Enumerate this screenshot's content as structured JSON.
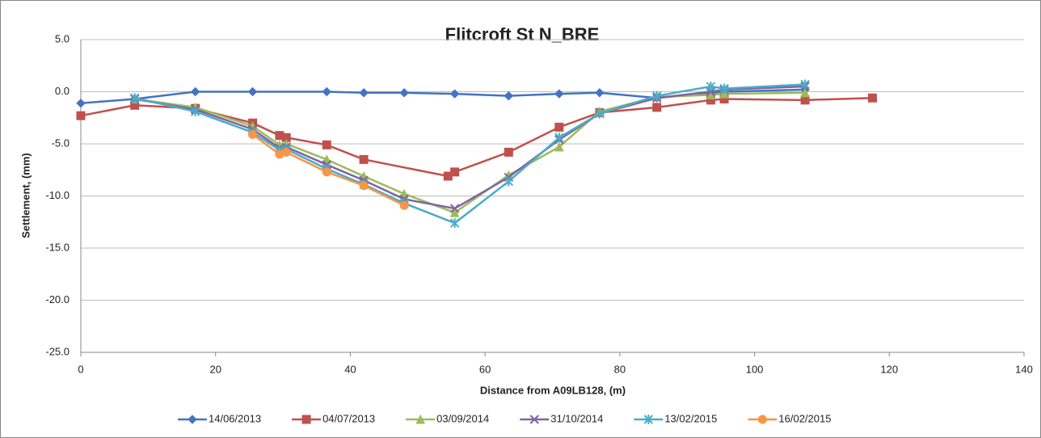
{
  "chart_data": {
    "type": "line",
    "title": "Flitcroft St N_BRE",
    "x_label": "Distance from A09LB128, (m)",
    "y_label": "Settlement, (mm)",
    "xlim": [
      0,
      140
    ],
    "xticks": [
      0,
      20,
      40,
      60,
      80,
      100,
      120,
      140
    ],
    "ylim": [
      -25,
      5
    ],
    "yticks": [
      {
        "value": 5,
        "label": "5.0"
      },
      {
        "value": 0,
        "label": "0.0"
      },
      {
        "value": -5,
        "label": "-5.0"
      },
      {
        "value": -10,
        "label": "-10.0"
      },
      {
        "value": -15,
        "label": "-15.0"
      },
      {
        "value": -20,
        "label": "-20.0"
      },
      {
        "value": -25,
        "label": "-25.0"
      }
    ],
    "grid": true,
    "legend": "bottom",
    "series": [
      {
        "name": "14/06/2013",
        "color": "#4472c4",
        "marker": "diamond",
        "x": [
          0,
          8,
          17,
          25.5,
          36.5,
          42,
          48,
          55.5,
          63.5,
          71,
          77,
          85.5,
          93.5,
          95.5,
          107.5
        ],
        "values": [
          -1.1,
          -0.7,
          0,
          0,
          0,
          -0.1,
          -0.1,
          -0.2,
          -0.4,
          -0.2,
          -0.1,
          -0.6,
          -0.1,
          0,
          0.2
        ]
      },
      {
        "name": "04/07/2013",
        "color": "#c0504d",
        "marker": "square",
        "x": [
          0,
          8,
          17,
          25.5,
          29.5,
          30.5,
          36.5,
          42,
          54.5,
          55.5,
          63.5,
          71,
          77,
          85.5,
          93.5,
          95.5,
          107.5,
          117.5
        ],
        "values": [
          -2.3,
          -1.3,
          -1.6,
          -3,
          -4.2,
          -4.4,
          -5.1,
          -6.5,
          -8.1,
          -7.7,
          -5.8,
          -3.4,
          -2,
          -1.5,
          -0.8,
          -0.7,
          -0.8,
          -0.6
        ]
      },
      {
        "name": "03/09/2014",
        "color": "#9bbb59",
        "marker": "triangle",
        "x": [
          8,
          17,
          25.5,
          29.5,
          30.5,
          36.5,
          42,
          48,
          55.5,
          63.5,
          71,
          77,
          85.5,
          93.5,
          95.5,
          107.5
        ],
        "values": [
          -0.7,
          -1.5,
          -3.3,
          -5.1,
          -5,
          -6.5,
          -8.1,
          -9.8,
          -11.6,
          -8,
          -5.3,
          -1.9,
          -0.5,
          -0.3,
          -0.2,
          -0.1
        ]
      },
      {
        "name": "31/10/2014",
        "color": "#8064a2",
        "marker": "x",
        "x": [
          8,
          17,
          25.5,
          29.5,
          30.5,
          36.5,
          42,
          48,
          55.5,
          63.5,
          71,
          77,
          85.5,
          93.5,
          95.5,
          107.5
        ],
        "values": [
          -0.7,
          -1.7,
          -3.6,
          -5.4,
          -5.3,
          -7,
          -8.5,
          -10.3,
          -11.2,
          -8.2,
          -4.6,
          -2.1,
          -0.6,
          0,
          0.2,
          0.5
        ]
      },
      {
        "name": "13/02/2015",
        "color": "#4bacc6",
        "marker": "star",
        "x": [
          8,
          17,
          25.5,
          29.5,
          30.5,
          36.5,
          42,
          48,
          55.5,
          63.5,
          71,
          77,
          85.5,
          93.5,
          95.5,
          107.5
        ],
        "values": [
          -0.6,
          -1.9,
          -3.9,
          -5.6,
          -5.5,
          -7.4,
          -8.9,
          -10.7,
          -12.6,
          -8.6,
          -4.4,
          -2.1,
          -0.4,
          0.5,
          0.3,
          0.7
        ]
      },
      {
        "name": "16/02/2015",
        "color": "#f79646",
        "marker": "circle",
        "x": [
          25.5,
          29.5,
          30.5,
          36.5,
          42,
          48
        ],
        "values": [
          -4.1,
          -6,
          -5.8,
          -7.7,
          -9,
          -10.9
        ]
      }
    ]
  }
}
